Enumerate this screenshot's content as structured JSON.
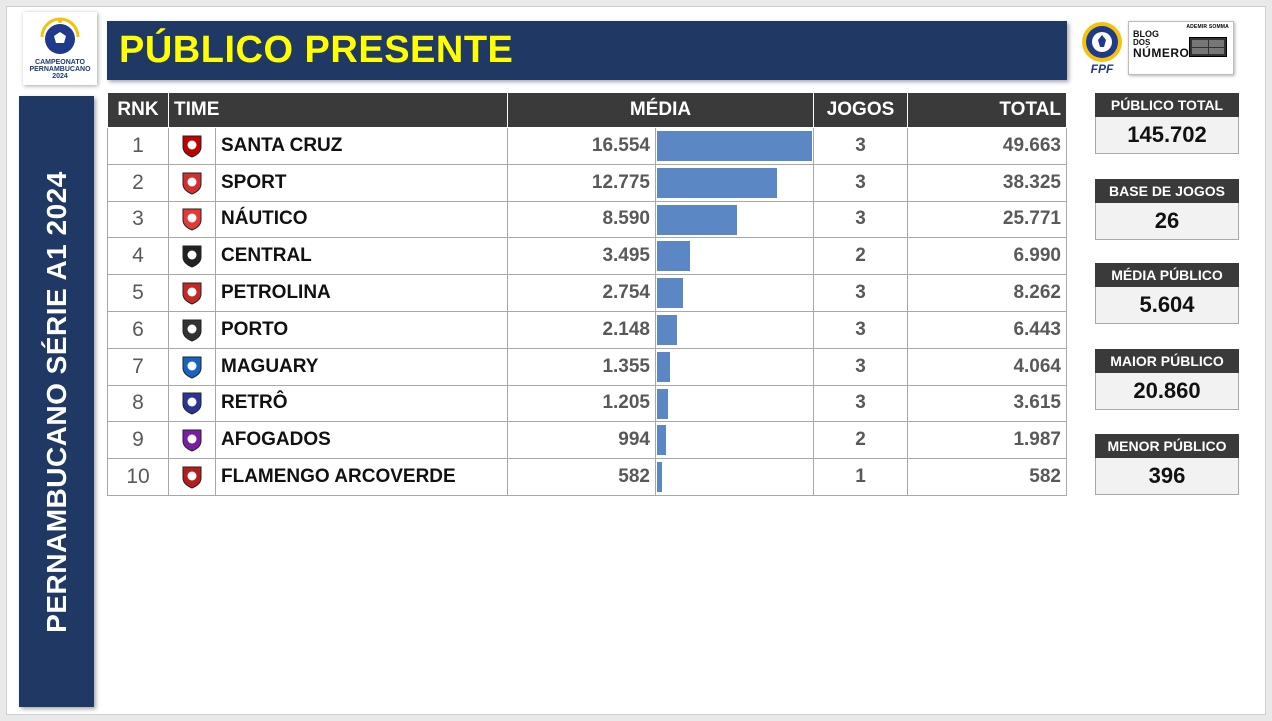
{
  "title": "PÚBLICO PRESENTE",
  "side_title": "PERNAMBUCANO SÉRIE A1 2024",
  "logos": {
    "championship": [
      "CAMPEONATO",
      "PERNAMBUCANO",
      "2024"
    ],
    "federation": "FPF",
    "blog": {
      "author": "ADEMIR SOMMA",
      "line1": "BLOG",
      "line2": "DOS",
      "line3": "NÚMEROS"
    }
  },
  "colors": {
    "header_bg": "#1f3864",
    "title_text": "#ffff00",
    "bar": "#5b87c5",
    "table_header_bg": "#3a3a3a"
  },
  "table": {
    "headers": {
      "rank": "RNK",
      "team": "TIME",
      "average": "MÉDIA",
      "games": "JOGOS",
      "total": "TOTAL"
    },
    "rows": [
      {
        "rank": "1",
        "team": "SANTA CRUZ",
        "average": "16.554",
        "average_value": 16554,
        "games": "3",
        "total": "49.663",
        "crest": "santa-cruz-crest-icon",
        "crest_color": "#c00000"
      },
      {
        "rank": "2",
        "team": "SPORT",
        "average": "12.775",
        "average_value": 12775,
        "games": "3",
        "total": "38.325",
        "crest": "sport-crest-icon",
        "crest_color": "#d32f2f"
      },
      {
        "rank": "3",
        "team": "NÁUTICO",
        "average": "8.590",
        "average_value": 8590,
        "games": "3",
        "total": "25.771",
        "crest": "nautico-crest-icon",
        "crest_color": "#e53935"
      },
      {
        "rank": "4",
        "team": "CENTRAL",
        "average": "3.495",
        "average_value": 3495,
        "games": "2",
        "total": "6.990",
        "crest": "central-crest-icon",
        "crest_color": "#222222"
      },
      {
        "rank": "5",
        "team": "PETROLINA",
        "average": "2.754",
        "average_value": 2754,
        "games": "3",
        "total": "8.262",
        "crest": "petrolina-crest-icon",
        "crest_color": "#c62828"
      },
      {
        "rank": "6",
        "team": "PORTO",
        "average": "2.148",
        "average_value": 2148,
        "games": "3",
        "total": "6.443",
        "crest": "porto-crest-icon",
        "crest_color": "#333333"
      },
      {
        "rank": "7",
        "team": "MAGUARY",
        "average": "1.355",
        "average_value": 1355,
        "games": "3",
        "total": "4.064",
        "crest": "maguary-crest-icon",
        "crest_color": "#1565c0"
      },
      {
        "rank": "8",
        "team": "RETRÔ",
        "average": "1.205",
        "average_value": 1205,
        "games": "3",
        "total": "3.615",
        "crest": "retro-crest-icon",
        "crest_color": "#283593"
      },
      {
        "rank": "9",
        "team": "AFOGADOS",
        "average": "994",
        "average_value": 994,
        "games": "2",
        "total": "1.987",
        "crest": "afogados-crest-icon",
        "crest_color": "#7b1fa2"
      },
      {
        "rank": "10",
        "team": "FLAMENGO ARCOVERDE",
        "average": "582",
        "average_value": 582,
        "games": "1",
        "total": "582",
        "crest": "flamengo-arcoverde-crest-icon",
        "crest_color": "#b71c1c"
      }
    ]
  },
  "stats": [
    {
      "label": "PÚBLICO TOTAL",
      "value": "145.702"
    },
    {
      "label": "BASE DE JOGOS",
      "value": "26"
    },
    {
      "label": "MÉDIA PÚBLICO",
      "value": "5.604"
    },
    {
      "label": "MAIOR PÚBLICO",
      "value": "20.860"
    },
    {
      "label": "MENOR PÚBLICO",
      "value": "396"
    }
  ]
}
